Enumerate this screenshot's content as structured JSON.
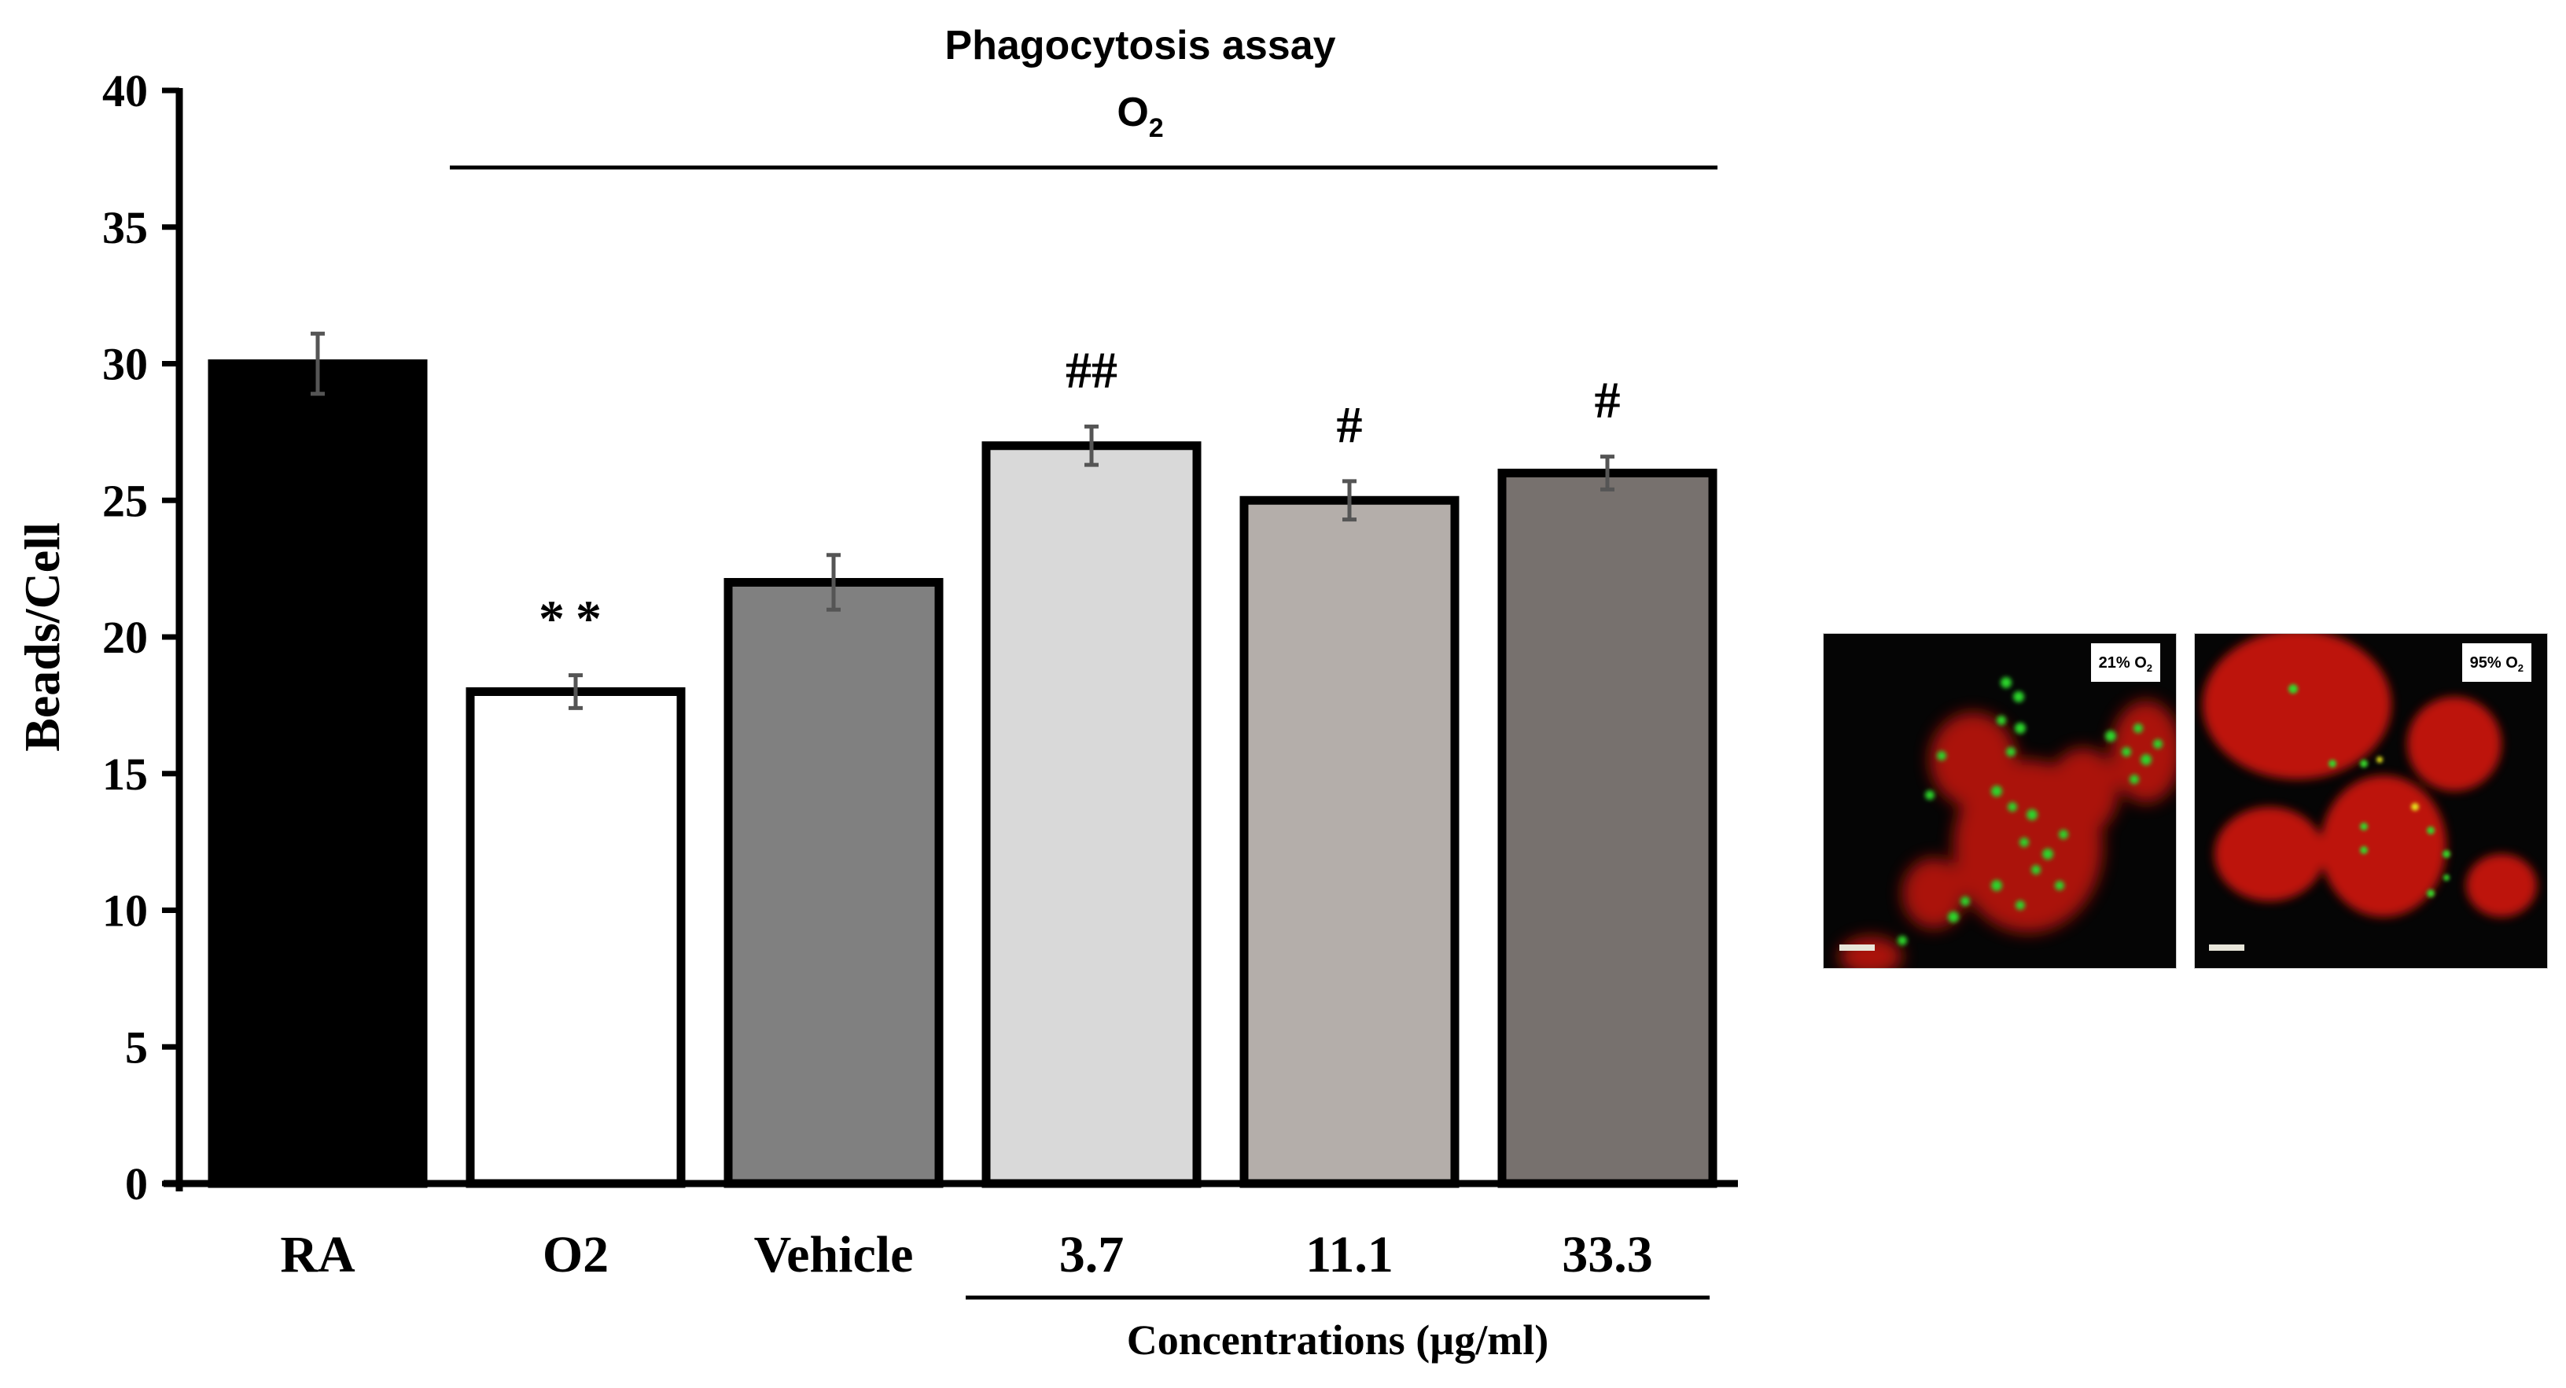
{
  "chart_data": {
    "type": "bar",
    "title": "Phagocytosis assay",
    "title_line2": "O",
    "title_line2_sub": "2",
    "ylabel": "Beads/Cell",
    "xlabel": "Concentrations (µg/ml)",
    "ylim": [
      0,
      40
    ],
    "yticks": [
      "0",
      "5",
      "10",
      "15",
      "20",
      "25",
      "30",
      "35",
      "40"
    ],
    "categories": [
      "RA",
      "O2",
      "Vehicle",
      "3.7",
      "11.1",
      "33.3"
    ],
    "values": [
      30,
      18,
      22,
      27,
      25,
      26
    ],
    "errors": [
      1.1,
      0.6,
      1.0,
      0.7,
      0.7,
      0.6
    ],
    "annotations": [
      "",
      "**",
      "",
      "##",
      "#",
      "#"
    ],
    "bar_colors": [
      "#000000",
      "#ffffff",
      "#808080",
      "#d9d9d9",
      "#b4aeaa",
      "#77716e"
    ],
    "grid": false,
    "legend": "none"
  },
  "images": {
    "panel_left_label": "21% O",
    "panel_left_sub": "2",
    "panel_right_label": "95% O",
    "panel_right_sub": "2"
  }
}
